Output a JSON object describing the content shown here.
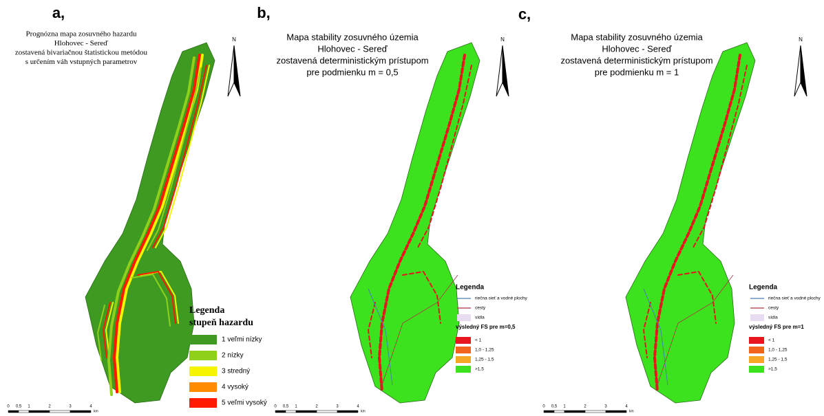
{
  "panels": [
    {
      "label": "a,",
      "title_lines": [
        "Prognózna mapa zosuvného hazardu",
        "Hlohovec - Sereď",
        "zostavená bivariačnou štatistickou metódou",
        "s určením váh vstupných parametrov"
      ],
      "north": "N",
      "map_color": "#3f9a22",
      "legend": {
        "title_lines": [
          "Legenda",
          "stupeň hazardu"
        ],
        "classes": [
          {
            "label": "1 veľmi nízky",
            "color": "#3f9a22"
          },
          {
            "label": "2 nízky",
            "color": "#8fd11a"
          },
          {
            "label": "3 stredný",
            "color": "#f5f500"
          },
          {
            "label": "4 vysoký",
            "color": "#ff8c00"
          },
          {
            "label": "5 veľmi vysoký",
            "color": "#ff1a00"
          }
        ]
      },
      "scale": {
        "ticks": [
          "0",
          "0,5",
          "1",
          "2",
          "3",
          "4"
        ],
        "unit": "km"
      }
    },
    {
      "label": "b,",
      "title_lines": [
        "Mapa stability zosuvného územia",
        "Hlohovec - Sereď",
        "zostavená deterministickým prístupom",
        "pre podmienku m = 0,5"
      ],
      "north": "N",
      "map_color": "#3ce21e",
      "legend": {
        "title_lines": [
          "Legenda"
        ],
        "items": [
          {
            "label": "riečna sieť a vodné plochy",
            "color": "#4a7fb0",
            "kind": "line"
          },
          {
            "label": "cesty",
            "color": "#b03040",
            "kind": "line"
          },
          {
            "label": "sídla",
            "color": "#e8dcf0",
            "kind": "box"
          }
        ],
        "subtitle": "výsledný FS pre m=0,5",
        "classes": [
          {
            "label": "< 1",
            "color": "#e8141e"
          },
          {
            "label": "1,0 - 1,25",
            "color": "#f2641e"
          },
          {
            "label": "1,25 - 1,5",
            "color": "#f5a623"
          },
          {
            "label": ">1,5",
            "color": "#3ce21e"
          }
        ]
      },
      "scale": {
        "ticks": [
          "0",
          "0,5",
          "1",
          "2",
          "3",
          "4"
        ],
        "unit": "km"
      }
    },
    {
      "label": "c,",
      "title_lines": [
        "Mapa stability zosuvného územia",
        "Hlohovec - Sereď",
        "zostavená deterministickým prístupom",
        "pre podmienku m = 1"
      ],
      "north": "N",
      "map_color": "#3ce21e",
      "legend": {
        "title_lines": [
          "Legenda"
        ],
        "items": [
          {
            "label": "riečna sieť a vodné plochy",
            "color": "#4a7fb0",
            "kind": "line"
          },
          {
            "label": "cesty",
            "color": "#b03040",
            "kind": "line"
          },
          {
            "label": "sídla",
            "color": "#e8dcf0",
            "kind": "box"
          }
        ],
        "subtitle": "výsledný FS pre m=1",
        "classes": [
          {
            "label": "< 1",
            "color": "#e8141e"
          },
          {
            "label": "1,0 - 1,25",
            "color": "#f2641e"
          },
          {
            "label": "1,25 - 1,5",
            "color": "#f5a623"
          },
          {
            "label": ">1,5",
            "color": "#3ce21e"
          }
        ]
      },
      "scale": {
        "ticks": [
          "0",
          "0,5",
          "1",
          "2",
          "3",
          "4"
        ],
        "unit": "km"
      }
    }
  ]
}
